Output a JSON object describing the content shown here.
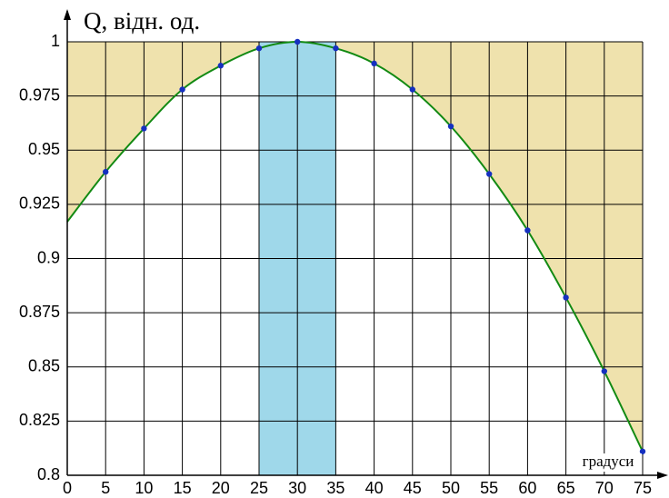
{
  "chart_data": {
    "type": "line",
    "title": "Q, відн. од.",
    "x_label": "градуси",
    "x": [
      0,
      5,
      10,
      15,
      20,
      25,
      30,
      35,
      40,
      45,
      50,
      55,
      60,
      65,
      70,
      75
    ],
    "series": [
      {
        "color": "#138a13",
        "values": [
          0.917,
          0.94,
          0.96,
          0.978,
          0.989,
          0.997,
          1.0,
          0.997,
          0.99,
          0.978,
          0.961,
          0.939,
          0.913,
          0.882,
          0.848,
          0.811
        ]
      },
      {
        "color": "#1530c0",
        "markers": true,
        "values": [
          null,
          0.94,
          0.96,
          0.978,
          0.989,
          0.997,
          1.0,
          0.997,
          0.99,
          0.978,
          0.961,
          0.939,
          0.913,
          0.882,
          0.848,
          0.811
        ]
      }
    ],
    "highlight_x": [
      25,
      35
    ],
    "highlight_color": "#9fd8ea",
    "above_curve_color": "#efe2ad",
    "xlim": [
      0,
      75
    ],
    "xticks": [
      0,
      5,
      10,
      15,
      20,
      25,
      30,
      35,
      40,
      45,
      50,
      55,
      60,
      65,
      70,
      75
    ],
    "ylim": [
      0.8,
      1
    ],
    "yticks": [
      0.8,
      0.825,
      0.85,
      0.875,
      0.9,
      0.925,
      0.95,
      0.975,
      1
    ],
    "grid": true
  }
}
